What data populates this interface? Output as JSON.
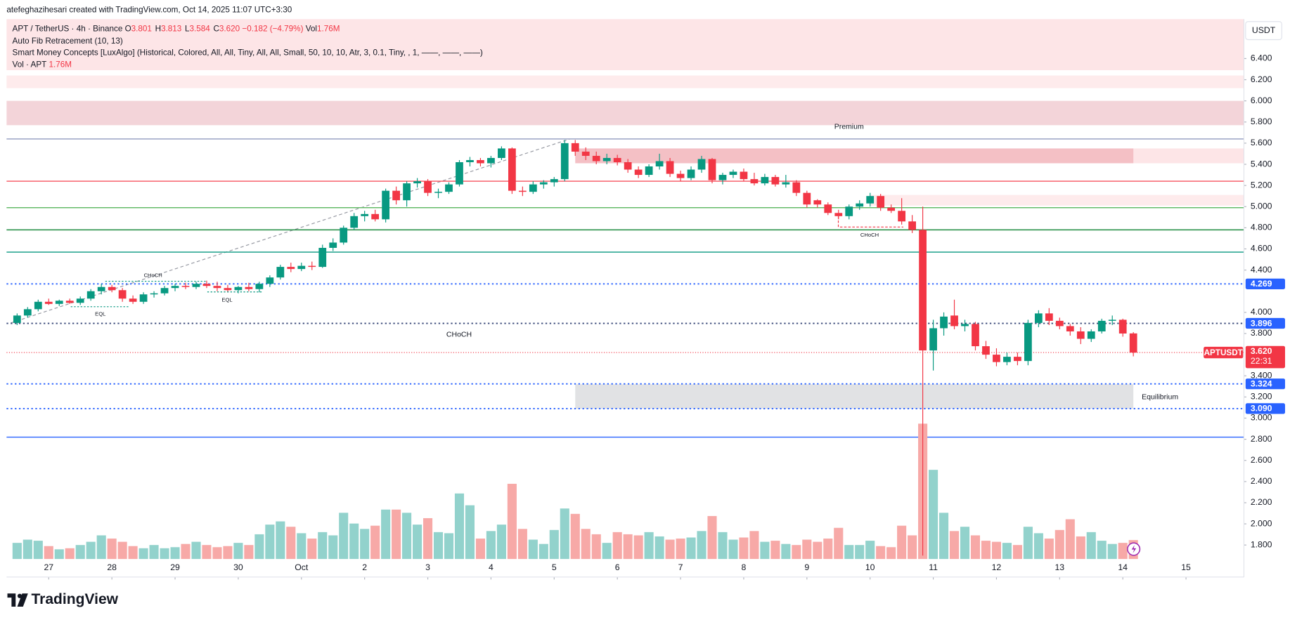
{
  "header": {
    "credit": "atefeghazihesari created with TradingView.com, Oct 14, 2025 11:07 UTC+3:30",
    "brand": "TradingView"
  },
  "chart_data": {
    "type": "candlestick",
    "currency": "USDT",
    "legend": {
      "symbol": "APT / TetherUS · 4h · Binance",
      "fields": [
        {
          "key": "O",
          "value": "3.801"
        },
        {
          "key": "H",
          "value": "3.813"
        },
        {
          "key": "L",
          "value": "3.584"
        },
        {
          "key": "C",
          "value": "3.620"
        }
      ],
      "change": "−0.182 (−4.79%)",
      "vol_key": "Vol",
      "vol": "1.76M"
    },
    "indicators": [
      "Auto Fib Retracement (10, 13)",
      "Smart Money Concepts [LuxAlgo] (Historical, Colored, All, All, Tiny, All, All, Small, 50, 10, 10, Atr, 3, 0.1, Tiny, , 1, ——, ——, ——)"
    ],
    "volume_legend": {
      "name": "Vol · APT"
    },
    "up_color": "#089981",
    "down_color": "#f23645",
    "volume_up_color": "#92d2cc",
    "volume_down_color": "#f7a9a7",
    "open": [
      3.9,
      3.97,
      4.03,
      4.1,
      4.08,
      4.11,
      4.09,
      4.13,
      4.2,
      4.24,
      4.21,
      4.13,
      4.1,
      4.17,
      4.18,
      4.23,
      4.25,
      4.24,
      4.27,
      4.25,
      4.23,
      4.21,
      4.24,
      4.22,
      4.27,
      4.33,
      4.43,
      4.41,
      4.44,
      4.43,
      4.61,
      4.66,
      4.8,
      4.91,
      4.93,
      4.88,
      5.15,
      5.06,
      5.22,
      5.24,
      5.13,
      5.14,
      5.21,
      5.42,
      5.44,
      5.41,
      5.46,
      5.55,
      5.15,
      5.14,
      5.21,
      5.23,
      5.26,
      5.6,
      5.52,
      5.48,
      5.43,
      5.46,
      5.42,
      5.35,
      5.3,
      5.38,
      5.43,
      5.31,
      5.27,
      5.35,
      5.45,
      5.25,
      5.3,
      5.33,
      5.26,
      5.22,
      5.28,
      5.21,
      5.23,
      5.13,
      5.06,
      5.02,
      4.94,
      4.91,
      5.0,
      5.03,
      5.1,
      4.99,
      4.96,
      4.86,
      4.78,
      3.64,
      3.85,
      3.97,
      3.87,
      3.89,
      3.68,
      3.6,
      3.53,
      3.58,
      3.54,
      3.9,
      3.99,
      3.92,
      3.87,
      3.82,
      3.75,
      3.82,
      3.92,
      3.93,
      3.801
    ],
    "high": [
      3.99,
      4.05,
      4.12,
      4.13,
      4.12,
      4.13,
      4.15,
      4.22,
      4.27,
      4.26,
      4.23,
      4.16,
      4.19,
      4.2,
      4.25,
      4.27,
      4.28,
      4.29,
      4.3,
      4.29,
      4.26,
      4.25,
      4.28,
      4.29,
      4.35,
      4.45,
      4.47,
      4.47,
      4.48,
      4.64,
      4.7,
      4.82,
      4.94,
      4.96,
      4.97,
      5.17,
      5.19,
      5.24,
      5.27,
      5.26,
      5.17,
      5.23,
      5.44,
      5.47,
      5.46,
      5.48,
      5.57,
      5.56,
      5.19,
      5.24,
      5.25,
      5.28,
      5.63,
      5.63,
      5.56,
      5.52,
      5.5,
      5.49,
      5.45,
      5.38,
      5.4,
      5.5,
      5.46,
      5.34,
      5.38,
      5.48,
      5.46,
      5.32,
      5.35,
      5.36,
      5.32,
      5.31,
      5.3,
      5.3,
      5.25,
      5.15,
      5.07,
      5.04,
      4.97,
      5.02,
      5.06,
      5.13,
      5.12,
      5.02,
      5.08,
      4.92,
      5.0,
      3.93,
      4.0,
      4.12,
      3.93,
      3.91,
      3.73,
      3.66,
      3.62,
      3.62,
      3.93,
      4.02,
      4.04,
      3.95,
      3.89,
      3.86,
      3.84,
      3.94,
      3.97,
      3.94,
      3.813
    ],
    "low": [
      3.88,
      3.95,
      4.01,
      4.07,
      4.06,
      4.08,
      4.07,
      4.11,
      4.17,
      4.19,
      4.1,
      4.08,
      4.08,
      4.14,
      4.16,
      4.2,
      4.22,
      4.22,
      4.23,
      4.2,
      4.19,
      4.18,
      4.2,
      4.19,
      4.24,
      4.31,
      4.38,
      4.39,
      4.4,
      4.42,
      4.58,
      4.64,
      4.78,
      4.86,
      4.86,
      4.85,
      5.02,
      5.0,
      5.18,
      5.1,
      5.08,
      5.12,
      5.19,
      5.38,
      5.38,
      5.37,
      5.44,
      5.12,
      5.1,
      5.12,
      5.17,
      5.19,
      5.24,
      5.48,
      5.44,
      5.4,
      5.4,
      5.39,
      5.32,
      5.27,
      5.28,
      5.35,
      5.28,
      5.24,
      5.25,
      5.32,
      5.22,
      5.21,
      5.27,
      5.24,
      5.2,
      5.2,
      5.19,
      5.18,
      5.1,
      4.99,
      4.99,
      4.92,
      4.88,
      4.88,
      4.97,
      5.0,
      4.96,
      4.94,
      4.83,
      4.75,
      1.7,
      3.45,
      3.78,
      3.84,
      3.82,
      3.64,
      3.56,
      3.49,
      3.5,
      3.5,
      3.5,
      3.86,
      3.88,
      3.84,
      3.78,
      3.7,
      3.72,
      3.8,
      3.88,
      3.77,
      3.584
    ],
    "close": [
      3.97,
      4.03,
      4.1,
      4.08,
      4.11,
      4.09,
      4.13,
      4.2,
      4.24,
      4.21,
      4.13,
      4.1,
      4.17,
      4.18,
      4.23,
      4.25,
      4.24,
      4.27,
      4.25,
      4.23,
      4.21,
      4.24,
      4.22,
      4.27,
      4.33,
      4.43,
      4.41,
      4.44,
      4.43,
      4.61,
      4.66,
      4.8,
      4.91,
      4.93,
      4.88,
      5.15,
      5.06,
      5.22,
      5.24,
      5.13,
      5.14,
      5.21,
      5.42,
      5.44,
      5.41,
      5.46,
      5.55,
      5.15,
      5.14,
      5.21,
      5.23,
      5.26,
      5.6,
      5.52,
      5.48,
      5.43,
      5.46,
      5.42,
      5.35,
      5.3,
      5.38,
      5.43,
      5.31,
      5.27,
      5.35,
      5.45,
      5.25,
      5.3,
      5.33,
      5.26,
      5.22,
      5.28,
      5.21,
      5.23,
      5.13,
      5.02,
      5.02,
      4.94,
      4.91,
      5.0,
      5.03,
      5.1,
      4.99,
      4.96,
      4.86,
      4.78,
      3.64,
      3.85,
      3.96,
      3.87,
      3.89,
      3.68,
      3.6,
      3.53,
      3.58,
      3.54,
      3.9,
      3.99,
      3.92,
      3.87,
      3.82,
      3.75,
      3.82,
      3.92,
      3.93,
      3.8,
      3.62
    ],
    "volume": [
      1.5,
      1.8,
      1.7,
      1.2,
      0.9,
      1.0,
      1.3,
      1.6,
      2.2,
      1.9,
      1.6,
      1.2,
      1.0,
      1.3,
      1.0,
      1.1,
      1.4,
      1.6,
      1.3,
      1.1,
      1.2,
      1.5,
      1.3,
      2.3,
      3.2,
      3.5,
      3.0,
      2.4,
      1.9,
      2.5,
      2.2,
      4.3,
      3.3,
      2.8,
      3.1,
      4.6,
      4.6,
      4.3,
      3.2,
      3.8,
      2.5,
      2.4,
      6.1,
      5.0,
      1.9,
      2.6,
      3.2,
      7.0,
      2.8,
      1.8,
      1.4,
      2.7,
      4.7,
      4.2,
      2.8,
      2.3,
      1.5,
      2.5,
      2.3,
      2.2,
      2.5,
      2.1,
      1.8,
      1.9,
      2.0,
      2.6,
      4.0,
      2.5,
      1.8,
      2.0,
      2.6,
      1.6,
      1.7,
      1.4,
      1.3,
      1.8,
      1.6,
      1.9,
      2.9,
      1.3,
      1.3,
      1.7,
      1.2,
      1.1,
      3.1,
      2.2,
      12.6,
      8.3,
      4.3,
      2.6,
      3.0,
      2.2,
      1.7,
      1.6,
      1.5,
      1.3,
      3.0,
      2.4,
      1.9,
      2.7,
      3.7,
      2.1,
      2.5,
      1.7,
      1.4,
      1.5,
      1.76
    ],
    "xlim": [
      -1,
      116.5
    ],
    "xticks": [
      {
        "value": 3,
        "label": "27"
      },
      {
        "value": 9,
        "label": "28"
      },
      {
        "value": 15,
        "label": "29"
      },
      {
        "value": 21,
        "label": "30"
      },
      {
        "value": 27,
        "label": "Oct"
      },
      {
        "value": 33,
        "label": "2"
      },
      {
        "value": 39,
        "label": "3"
      },
      {
        "value": 45,
        "label": "4"
      },
      {
        "value": 51,
        "label": "5"
      },
      {
        "value": 57,
        "label": "6"
      },
      {
        "value": 63,
        "label": "7"
      },
      {
        "value": 69,
        "label": "8"
      },
      {
        "value": 75,
        "label": "9"
      },
      {
        "value": 81,
        "label": "10"
      },
      {
        "value": 87,
        "label": "11"
      },
      {
        "value": 93,
        "label": "12"
      },
      {
        "value": 99,
        "label": "13"
      },
      {
        "value": 105,
        "label": "14"
      },
      {
        "value": 111,
        "label": "15"
      }
    ],
    "ylim": [
      1.497,
      6.773
    ],
    "yticks": [
      {
        "value": 6.4,
        "label": "6.400"
      },
      {
        "value": 6.2,
        "label": "6.200"
      },
      {
        "value": 6.0,
        "label": "6.000"
      },
      {
        "value": 5.8,
        "label": "5.800"
      },
      {
        "value": 5.6,
        "label": "5.600"
      },
      {
        "value": 5.4,
        "label": "5.400"
      },
      {
        "value": 5.2,
        "label": "5.200"
      },
      {
        "value": 5.0,
        "label": "5.000"
      },
      {
        "value": 4.8,
        "label": "4.800"
      },
      {
        "value": 4.6,
        "label": "4.600"
      },
      {
        "value": 4.4,
        "label": "4.400"
      },
      {
        "value": 4.0,
        "label": "4.000"
      },
      {
        "value": 3.8,
        "label": "3.800"
      },
      {
        "value": 3.4,
        "label": "3.400"
      },
      {
        "value": 3.2,
        "label": "3.200"
      },
      {
        "value": 3.0,
        "label": "3.000"
      },
      {
        "value": 2.8,
        "label": "2.800"
      },
      {
        "value": 2.6,
        "label": "2.600"
      },
      {
        "value": 2.4,
        "label": "2.400"
      },
      {
        "value": 2.2,
        "label": "2.200"
      },
      {
        "value": 2.0,
        "label": "2.000"
      },
      {
        "value": 1.8,
        "label": "1.800"
      }
    ],
    "grid": false,
    "zones": [
      {
        "top": 6.773,
        "bottom": 6.29,
        "from": -1,
        "to": 116.5,
        "color": "rgba(242,54,69,0.13)"
      },
      {
        "top": 6.24,
        "bottom": 6.12,
        "from": -1,
        "to": 116.5,
        "color": "rgba(242,54,69,0.10)"
      },
      {
        "top": 6.0,
        "bottom": 5.77,
        "from": -1,
        "to": 116.5,
        "color": "rgba(200,60,80,0.22)"
      },
      {
        "top": 5.55,
        "bottom": 5.41,
        "from": 53,
        "to": 106,
        "color": "rgba(220,60,75,0.32)"
      },
      {
        "top": 5.55,
        "bottom": 5.41,
        "from": 106,
        "to": 116.5,
        "color": "rgba(242,54,69,0.13)"
      },
      {
        "top": 5.11,
        "bottom": 5.01,
        "from": 81,
        "to": 116.5,
        "color": "rgba(242,54,69,0.10)"
      },
      {
        "top": 3.32,
        "bottom": 3.09,
        "from": 53,
        "to": 106,
        "color": "rgba(120,123,134,0.22)"
      }
    ],
    "fib_levels": [
      {
        "value": 5.64,
        "color": "#9aa3c4"
      },
      {
        "value": 5.24,
        "color": "#f7525f"
      },
      {
        "value": 4.99,
        "color": "#66bb6a"
      },
      {
        "value": 4.78,
        "color": "#1b8a3e"
      },
      {
        "value": 4.57,
        "color": "#089981"
      },
      {
        "value": 2.82,
        "color": "#2962ff"
      }
    ],
    "levels": [
      {
        "value": 4.269,
        "label": "4.269",
        "color": "#2962ff"
      },
      {
        "value": 3.896,
        "label": "3.896",
        "color": "#2962ff"
      },
      {
        "value": 3.324,
        "label": "3.324",
        "color": "#2962ff"
      },
      {
        "value": 3.09,
        "label": "3.090",
        "color": "#2962ff"
      }
    ],
    "last_price": {
      "value": 3.62,
      "label": "3.620",
      "symbol": "APTUSDT",
      "countdown": "22:31",
      "color": "#f23645"
    },
    "trend_line": {
      "from": [
        -0.6,
        3.9
      ],
      "to": [
        52.5,
        5.64
      ]
    },
    "annotations": [
      "Premium",
      "CHoCH",
      "CHoCH",
      "CHoCH",
      "EQL",
      "EQL",
      "Equilibrium"
    ]
  }
}
